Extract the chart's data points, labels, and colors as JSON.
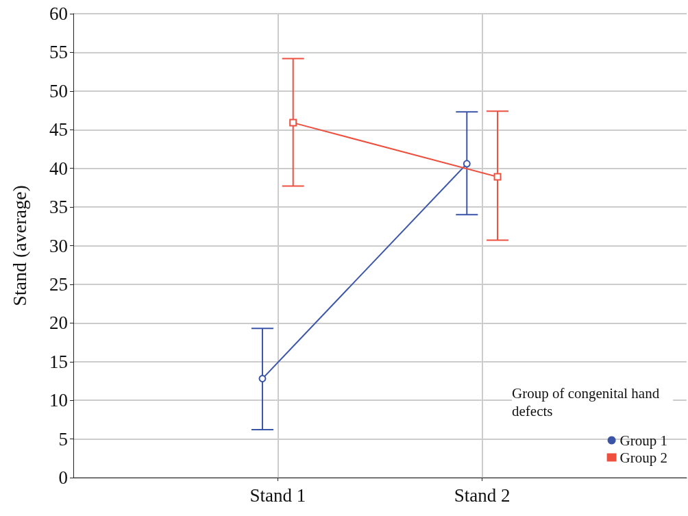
{
  "chart_data": {
    "type": "line",
    "ylabel": "Stand (average)",
    "categories": [
      "Stand 1",
      "Stand 2"
    ],
    "series": [
      {
        "name": "Group 1",
        "color": "#3a55a8",
        "marker": "circle",
        "values": [
          12.8,
          40.6
        ],
        "errors": [
          [
            6.2,
            19.3
          ],
          [
            34.0,
            47.3
          ]
        ]
      },
      {
        "name": "Group 2",
        "color": "#ee5040",
        "marker": "square",
        "values": [
          45.9,
          38.9
        ],
        "errors": [
          [
            37.7,
            54.2
          ],
          [
            30.7,
            47.4
          ]
        ]
      }
    ],
    "ylim": [
      0,
      60
    ],
    "yticks": [
      0,
      5,
      10,
      15,
      20,
      25,
      30,
      35,
      40,
      45,
      50,
      55,
      60
    ],
    "grid": true,
    "legend": "bottom right",
    "legend_title": "Group of congenital hand defects",
    "line_style": "solid"
  }
}
